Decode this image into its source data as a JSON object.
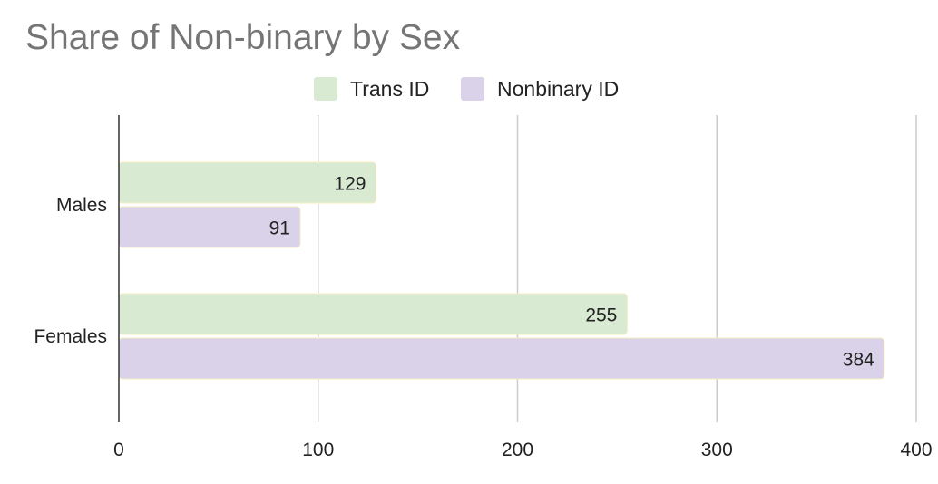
{
  "chart_data": {
    "type": "bar",
    "orientation": "horizontal",
    "title": "Share of Non-binary by Sex",
    "categories": [
      "Males",
      "Females"
    ],
    "series": [
      {
        "name": "Trans ID",
        "values": [
          129,
          255
        ],
        "color": "#d9ead3"
      },
      {
        "name": "Nonbinary ID",
        "values": [
          91,
          384
        ],
        "color": "#d9d2e9"
      }
    ],
    "x_ticks": [
      0,
      100,
      200,
      300,
      400
    ],
    "xlim": [
      0,
      400
    ],
    "grid": true,
    "legend": "top-center",
    "data_labels": true
  }
}
